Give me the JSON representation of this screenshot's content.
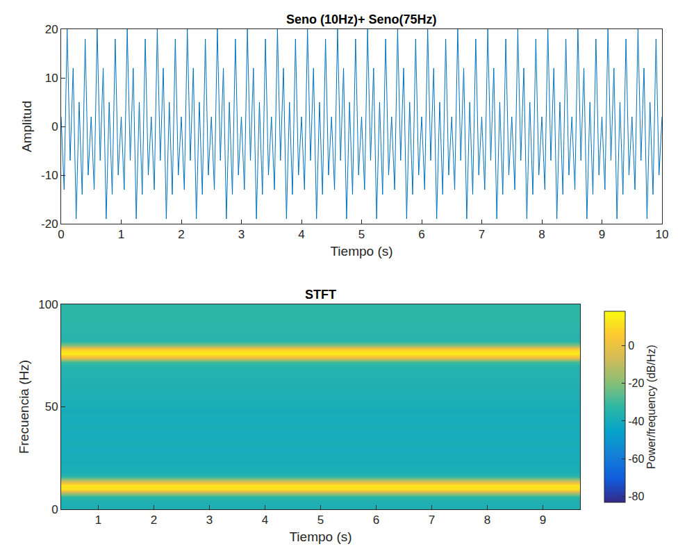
{
  "chart_data": [
    {
      "type": "line",
      "title": "Seno (10Hz)+ Seno(75Hz)",
      "xlabel": "Tiempo (s)",
      "ylabel": "Amplitud",
      "color": "#0072bd",
      "grid": false,
      "xlim": [
        0,
        10
      ],
      "xticks": [
        0,
        1,
        2,
        3,
        4,
        5,
        6,
        7,
        8,
        9,
        10
      ],
      "ylim": [
        -20,
        20
      ],
      "yticks": [
        -20,
        -10,
        0,
        10,
        20
      ],
      "x": [
        0,
        0.05,
        0.1,
        0.15,
        0.2,
        0.25,
        0.3,
        0.35,
        0.4,
        0.45,
        0.5,
        0.55,
        0.6,
        0.65,
        0.7,
        0.75,
        0.8,
        0.85,
        0.9,
        0.95,
        1,
        1.05,
        1.1,
        1.15,
        1.2,
        1.25,
        1.3,
        1.35,
        1.4,
        1.45,
        1.5,
        1.55,
        1.6,
        1.65,
        1.7,
        1.75,
        1.8,
        1.85,
        1.9,
        1.95,
        2,
        2.05,
        2.1,
        2.15,
        2.2,
        2.25,
        2.3,
        2.35,
        2.4,
        2.45,
        2.5,
        2.55,
        2.6,
        2.65,
        2.7,
        2.75,
        2.8,
        2.85,
        2.9,
        2.95,
        3,
        3.05,
        3.1,
        3.15,
        3.2,
        3.25,
        3.3,
        3.35,
        3.4,
        3.45,
        3.5,
        3.55,
        3.6,
        3.65,
        3.7,
        3.75,
        3.8,
        3.85,
        3.9,
        3.95,
        4,
        4.05,
        4.1,
        4.15,
        4.2,
        4.25,
        4.3,
        4.35,
        4.4,
        4.45,
        4.5,
        4.55,
        4.6,
        4.65,
        4.7,
        4.75,
        4.8,
        4.85,
        4.9,
        4.95,
        5,
        5.05,
        5.1,
        5.15,
        5.2,
        5.25,
        5.3,
        5.35,
        5.4,
        5.45,
        5.5,
        5.55,
        5.6,
        5.65,
        5.7,
        5.75,
        5.8,
        5.85,
        5.9,
        5.95,
        6,
        6.05,
        6.1,
        6.15,
        6.2,
        6.25,
        6.3,
        6.35,
        6.4,
        6.45,
        6.5,
        6.55,
        6.6,
        6.65,
        6.7,
        6.75,
        6.8,
        6.85,
        6.9,
        6.95,
        7,
        7.05,
        7.1,
        7.15,
        7.2,
        7.25,
        7.3,
        7.35,
        7.4,
        7.45,
        7.5,
        7.55,
        7.6,
        7.65,
        7.7,
        7.75,
        7.8,
        7.85,
        7.9,
        7.95,
        8,
        8.05,
        8.1,
        8.15,
        8.2,
        8.25,
        8.3,
        8.35,
        8.4,
        8.45,
        8.5,
        8.55,
        8.6,
        8.65,
        8.7,
        8.75,
        8.8,
        8.85,
        8.9,
        8.95,
        9,
        9.05,
        9.1,
        9.15,
        9.2,
        9.25,
        9.3,
        9.35,
        9.4,
        9.45,
        9.5,
        9.55,
        9.6,
        9.65,
        9.7,
        9.75,
        9.8,
        9.85,
        9.9,
        9.95,
        10
      ],
      "values": [
        2,
        -13,
        20,
        -7,
        12,
        -19,
        5,
        -14,
        18,
        -10,
        2,
        -13,
        20,
        -7,
        12,
        -19,
        5,
        -14,
        18,
        -10,
        2,
        -13,
        20,
        -7,
        12,
        -19,
        5,
        -14,
        18,
        -10,
        2,
        -13,
        20,
        -7,
        12,
        -19,
        5,
        -14,
        18,
        -10,
        2,
        -13,
        20,
        -7,
        12,
        -19,
        5,
        -14,
        18,
        -10,
        2,
        -13,
        20,
        -7,
        12,
        -19,
        5,
        -14,
        18,
        -10,
        2,
        -13,
        20,
        -7,
        12,
        -19,
        5,
        -14,
        18,
        -10,
        2,
        -13,
        20,
        -7,
        12,
        -19,
        5,
        -14,
        18,
        -10,
        2,
        -13,
        20,
        -7,
        12,
        -19,
        5,
        -14,
        18,
        -10,
        2,
        -13,
        20,
        -7,
        12,
        -19,
        5,
        -14,
        18,
        -10,
        2,
        -13,
        20,
        -7,
        12,
        -19,
        5,
        -14,
        18,
        -10,
        2,
        -13,
        20,
        -7,
        12,
        -19,
        5,
        -14,
        18,
        -10,
        2,
        -13,
        20,
        -7,
        12,
        -19,
        5,
        -14,
        18,
        -10,
        2,
        -13,
        20,
        -7,
        12,
        -19,
        5,
        -14,
        18,
        -10,
        2,
        -13,
        20,
        -7,
        12,
        -19,
        5,
        -14,
        18,
        -10,
        2,
        -13,
        20,
        -7,
        12,
        -19,
        5,
        -14,
        18,
        -10,
        2,
        -13,
        20,
        -7,
        12,
        -19,
        5,
        -14,
        18,
        -10,
        2,
        -13,
        20,
        -7,
        12,
        -19,
        5,
        -14,
        18,
        -10,
        2,
        -13,
        20,
        -7,
        12,
        -19,
        5,
        -14,
        18,
        -10,
        2,
        -13,
        20,
        -7,
        12,
        -19,
        5,
        -14,
        18,
        -10,
        2
      ]
    },
    {
      "type": "heatmap",
      "title": "STFT",
      "xlabel": "Tiempo (s)",
      "ylabel": "Frecuencia (Hz)",
      "zlabel": "Power/frequency (dB/Hz)",
      "grid": false,
      "xlim": [
        0.33,
        9.67
      ],
      "xticks": [
        1,
        2,
        3,
        4,
        5,
        6,
        7,
        8,
        9
      ],
      "ylim": [
        0,
        100
      ],
      "yticks": [
        0,
        50,
        100
      ],
      "zlim": [
        -83,
        18
      ],
      "zticks": [
        -80,
        -60,
        -40,
        -20,
        0
      ],
      "x": [
        0.33,
        9.67
      ],
      "y": [
        0,
        2,
        4,
        6,
        8,
        10,
        12,
        14,
        16,
        18,
        20,
        22,
        24,
        26,
        28,
        30,
        32,
        34,
        36,
        38,
        40,
        42,
        44,
        46,
        48,
        50,
        52,
        54,
        56,
        58,
        60,
        62,
        64,
        66,
        68,
        70,
        72,
        74,
        76,
        78,
        80,
        82,
        84,
        86,
        88,
        90,
        92,
        94,
        96,
        98,
        100
      ],
      "z": [
        [
          -37,
          -37
        ],
        [
          -38,
          -38
        ],
        [
          -37,
          -37
        ],
        [
          -33,
          -33
        ],
        [
          -12,
          -12
        ],
        [
          12,
          12
        ],
        [
          12,
          12
        ],
        [
          -10,
          -10
        ],
        [
          -33,
          -33
        ],
        [
          -38,
          -38
        ],
        [
          -39,
          -39
        ],
        [
          -39,
          -39
        ],
        [
          -40,
          -40
        ],
        [
          -39,
          -39
        ],
        [
          -40,
          -40
        ],
        [
          -40,
          -40
        ],
        [
          -39,
          -39
        ],
        [
          -40,
          -40
        ],
        [
          -40,
          -40
        ],
        [
          -40,
          -40
        ],
        [
          -39,
          -39
        ],
        [
          -40,
          -40
        ],
        [
          -40,
          -40
        ],
        [
          -39,
          -39
        ],
        [
          -40,
          -40
        ],
        [
          -39,
          -39
        ],
        [
          -39,
          -39
        ],
        [
          -38,
          -38
        ],
        [
          -38,
          -38
        ],
        [
          -37,
          -37
        ],
        [
          -37,
          -37
        ],
        [
          -37,
          -37
        ],
        [
          -36,
          -36
        ],
        [
          -36,
          -36
        ],
        [
          -36,
          -36
        ],
        [
          -35,
          -35
        ],
        [
          -30,
          -30
        ],
        [
          -2,
          -2
        ],
        [
          15,
          15
        ],
        [
          8,
          8
        ],
        [
          -20,
          -20
        ],
        [
          -34,
          -34
        ],
        [
          -35,
          -35
        ],
        [
          -34,
          -34
        ],
        [
          -34,
          -34
        ],
        [
          -34,
          -34
        ],
        [
          -33,
          -33
        ],
        [
          -33,
          -33
        ],
        [
          -33,
          -33
        ],
        [
          -33,
          -33
        ],
        [
          -33,
          -33
        ]
      ]
    }
  ]
}
